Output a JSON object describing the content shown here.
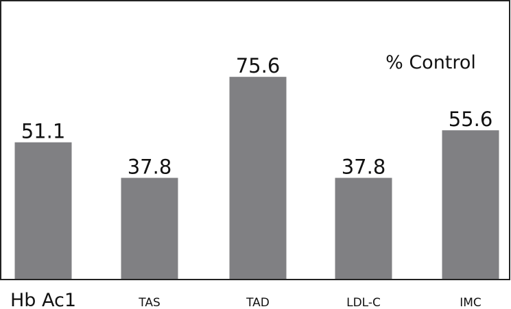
{
  "chart_data": {
    "type": "bar",
    "annotation": "% Control",
    "categories": [
      "Hb Ac1",
      "TAS",
      "TAD",
      "LDL-C",
      "IMC"
    ],
    "values": [
      51.1,
      37.8,
      75.6,
      37.8,
      55.6
    ],
    "color": "#808083"
  }
}
